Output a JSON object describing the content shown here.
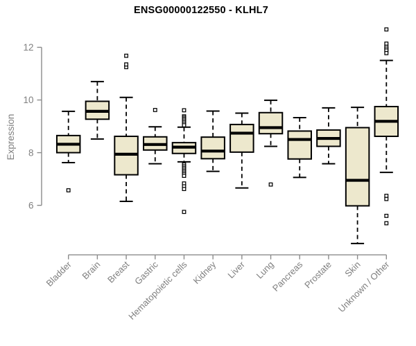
{
  "chart_data": {
    "type": "boxplot",
    "title": "ENSG00000122550 - KLHL7",
    "ylabel": "Expression",
    "xlabel": "",
    "y_ticks": [
      6,
      8,
      10,
      12
    ],
    "ylim": [
      4.3,
      12.9
    ],
    "grid": false,
    "legend": "none",
    "categories": [
      "Bladder",
      "Brain",
      "Breast",
      "Gastric",
      "Hematopoietic cells",
      "Kidney",
      "Liver",
      "Lung",
      "Pancreas",
      "Prostate",
      "Skin",
      "Unknown / Other"
    ],
    "series": [
      {
        "name": "Bladder",
        "whisker_low": 7.62,
        "q1": 8.0,
        "median": 8.32,
        "q3": 8.65,
        "whisker_high": 9.57,
        "outliers": [
          6.57
        ]
      },
      {
        "name": "Brain",
        "whisker_low": 8.52,
        "q1": 9.27,
        "median": 9.57,
        "q3": 9.95,
        "whisker_high": 10.7,
        "outliers": []
      },
      {
        "name": "Breast",
        "whisker_low": 6.15,
        "q1": 7.16,
        "median": 7.94,
        "q3": 8.62,
        "whisker_high": 10.1,
        "outliers": [
          11.25,
          11.35,
          11.68
        ]
      },
      {
        "name": "Gastric",
        "whisker_low": 7.58,
        "q1": 8.1,
        "median": 8.31,
        "q3": 8.6,
        "whisker_high": 8.98,
        "outliers": [
          9.62
        ]
      },
      {
        "name": "Hematopoietic cells",
        "whisker_low": 7.65,
        "q1": 7.97,
        "median": 8.21,
        "q3": 8.38,
        "whisker_high": 8.97,
        "outliers": [
          9.61,
          9.38,
          9.33,
          9.28,
          9.22,
          9.16,
          9.1,
          9.04,
          7.55,
          7.48,
          7.42,
          7.36,
          7.3,
          7.24,
          7.18,
          7.12,
          6.83,
          6.72,
          6.62,
          5.75
        ]
      },
      {
        "name": "Kidney",
        "whisker_low": 7.29,
        "q1": 7.77,
        "median": 8.06,
        "q3": 8.59,
        "whisker_high": 9.58,
        "outliers": []
      },
      {
        "name": "Liver",
        "whisker_low": 6.66,
        "q1": 8.02,
        "median": 8.74,
        "q3": 9.07,
        "whisker_high": 9.5,
        "outliers": []
      },
      {
        "name": "Lung",
        "whisker_low": 8.24,
        "q1": 8.72,
        "median": 8.95,
        "q3": 9.52,
        "whisker_high": 9.99,
        "outliers": [
          6.79
        ]
      },
      {
        "name": "Pancreas",
        "whisker_low": 7.06,
        "q1": 7.76,
        "median": 8.5,
        "q3": 8.82,
        "whisker_high": 9.33,
        "outliers": []
      },
      {
        "name": "Prostate",
        "whisker_low": 7.58,
        "q1": 8.24,
        "median": 8.54,
        "q3": 8.86,
        "whisker_high": 9.7,
        "outliers": []
      },
      {
        "name": "Skin",
        "whisker_low": 4.55,
        "q1": 5.98,
        "median": 6.95,
        "q3": 8.95,
        "whisker_high": 9.72,
        "outliers": []
      },
      {
        "name": "Unknown / Other",
        "whisker_low": 7.25,
        "q1": 8.62,
        "median": 9.19,
        "q3": 9.75,
        "whisker_high": 11.5,
        "outliers": [
          12.68,
          12.14,
          12.02,
          11.95,
          11.88,
          11.78,
          6.36,
          6.24,
          5.6,
          5.32
        ]
      }
    ]
  },
  "colors": {
    "box_fill": "#ede8cd",
    "box_border": "#000000",
    "median_line": "#000000",
    "whisker": "#000000",
    "outlier_fill": "#ffffff",
    "outlier_border": "#000000",
    "axis_line": "#8b8b8b",
    "axis_text": "#7f7f7f",
    "title_text": "#000000"
  }
}
